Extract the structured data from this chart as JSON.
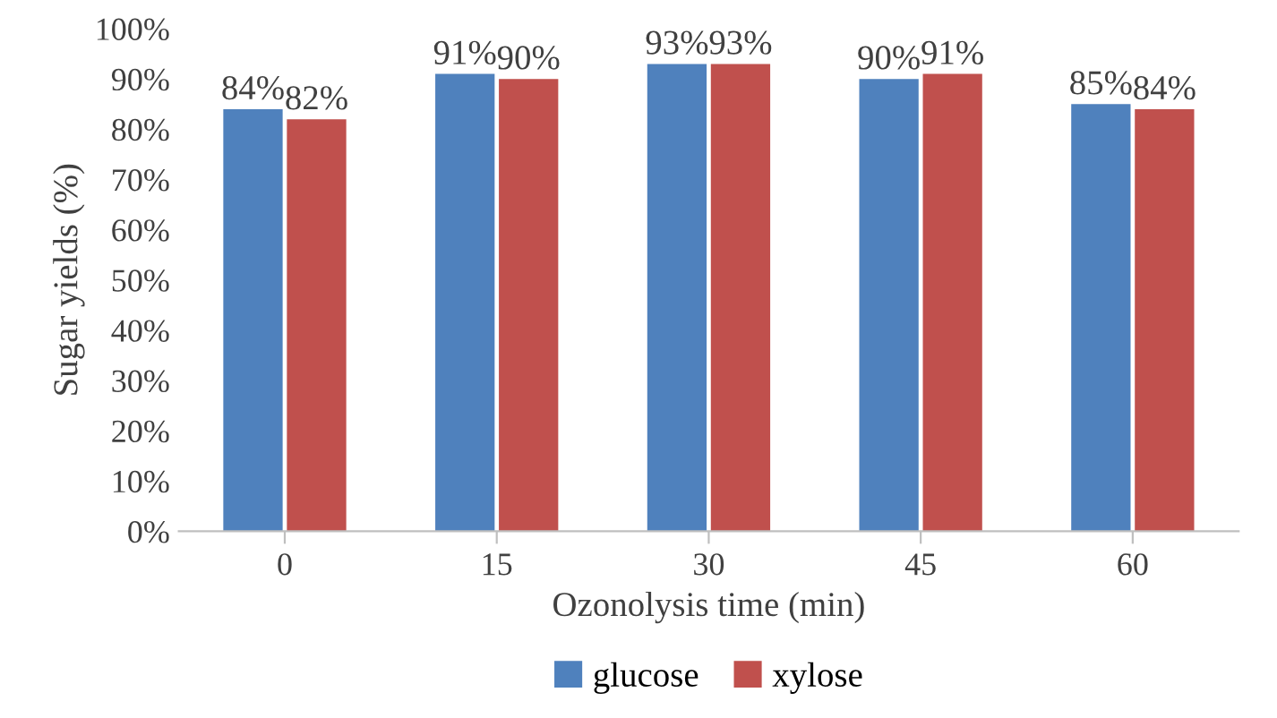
{
  "chart_data": {
    "type": "bar",
    "xlabel": "Ozonolysis time (min)",
    "ylabel": "Sugar yields (%)",
    "categories": [
      "0",
      "15",
      "30",
      "45",
      "60"
    ],
    "series": [
      {
        "name": "glucose",
        "color": "#4f81bd",
        "values": [
          84,
          91,
          93,
          90,
          85
        ],
        "value_labels": [
          "84%",
          "91%",
          "93%",
          "90%",
          "85%"
        ]
      },
      {
        "name": "xylose",
        "color": "#c0504d",
        "values": [
          82,
          90,
          93,
          91,
          84
        ],
        "value_labels": [
          "82%",
          "90%",
          "93%",
          "91%",
          "84%"
        ]
      }
    ],
    "ylim": [
      0,
      100
    ],
    "yticks": [
      {
        "value": 0,
        "label": "0%"
      },
      {
        "value": 10,
        "label": "10%"
      },
      {
        "value": 20,
        "label": "20%"
      },
      {
        "value": 30,
        "label": "30%"
      },
      {
        "value": 40,
        "label": "40%"
      },
      {
        "value": 50,
        "label": "50%"
      },
      {
        "value": 60,
        "label": "60%"
      },
      {
        "value": 70,
        "label": "70%"
      },
      {
        "value": 80,
        "label": "80%"
      },
      {
        "value": 90,
        "label": "90%"
      },
      {
        "value": 100,
        "label": "100%"
      }
    ],
    "grid": false,
    "legend": "bottom"
  }
}
